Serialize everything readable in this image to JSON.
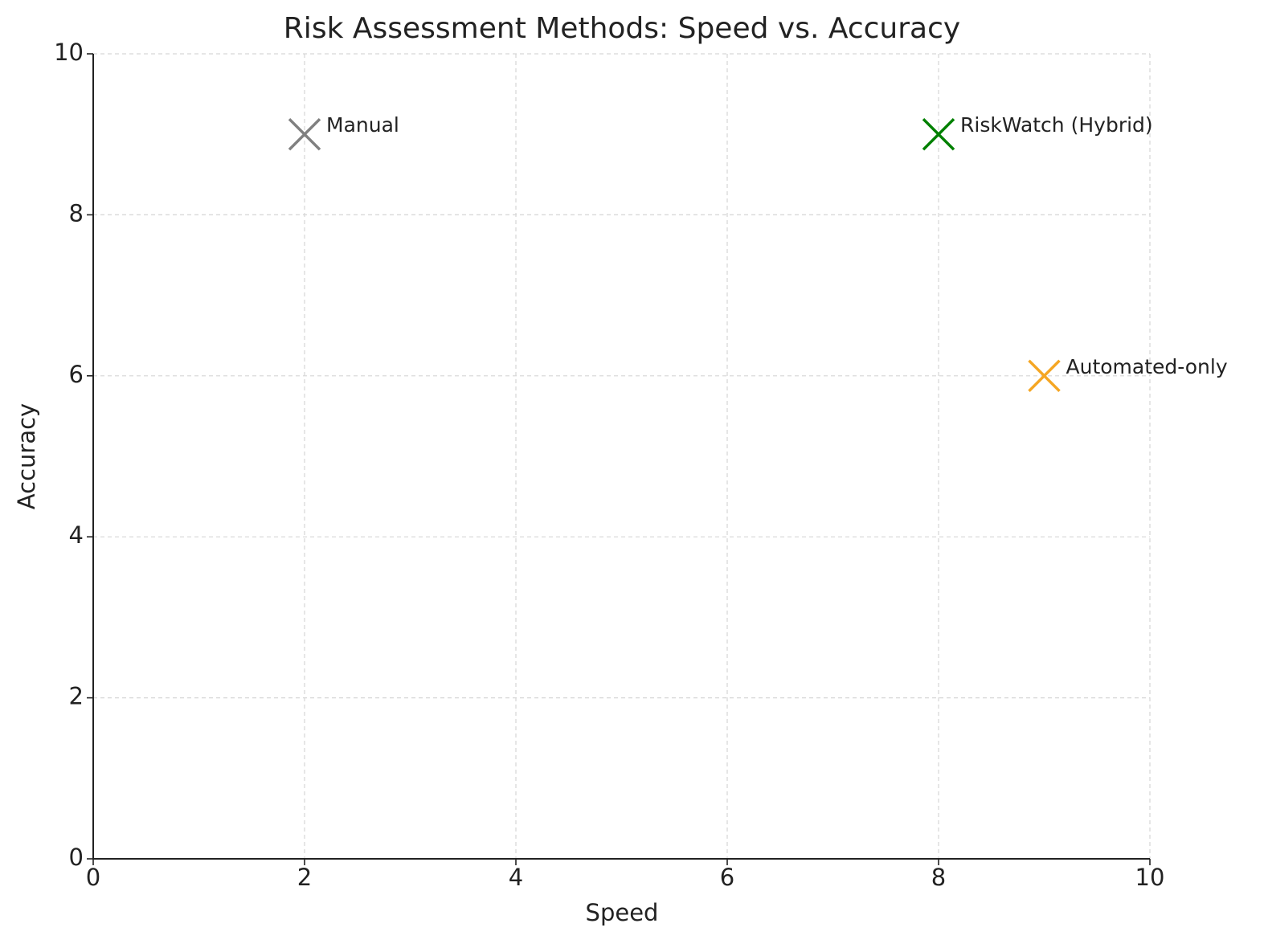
{
  "chart_data": {
    "type": "scatter",
    "title": "Risk Assessment Methods: Speed vs. Accuracy",
    "x_label": "Speed",
    "y_label": "Accuracy",
    "series": [
      {
        "name": "Manual",
        "color": "#808080",
        "x": [
          2
        ],
        "values": [
          9
        ]
      },
      {
        "name": "RiskWatch (Hybrid)",
        "color": "#008000",
        "x": [
          8
        ],
        "values": [
          9
        ]
      },
      {
        "name": "Automated-only",
        "color": "#f5a623",
        "x": [
          9
        ],
        "values": [
          6
        ]
      }
    ],
    "xlim": [
      0,
      10
    ],
    "ylim": [
      0,
      10
    ],
    "xticks": [
      0,
      2,
      4,
      6,
      8,
      10
    ],
    "yticks": [
      0,
      2,
      4,
      6,
      8,
      10
    ],
    "grid": true,
    "marker": "x"
  }
}
